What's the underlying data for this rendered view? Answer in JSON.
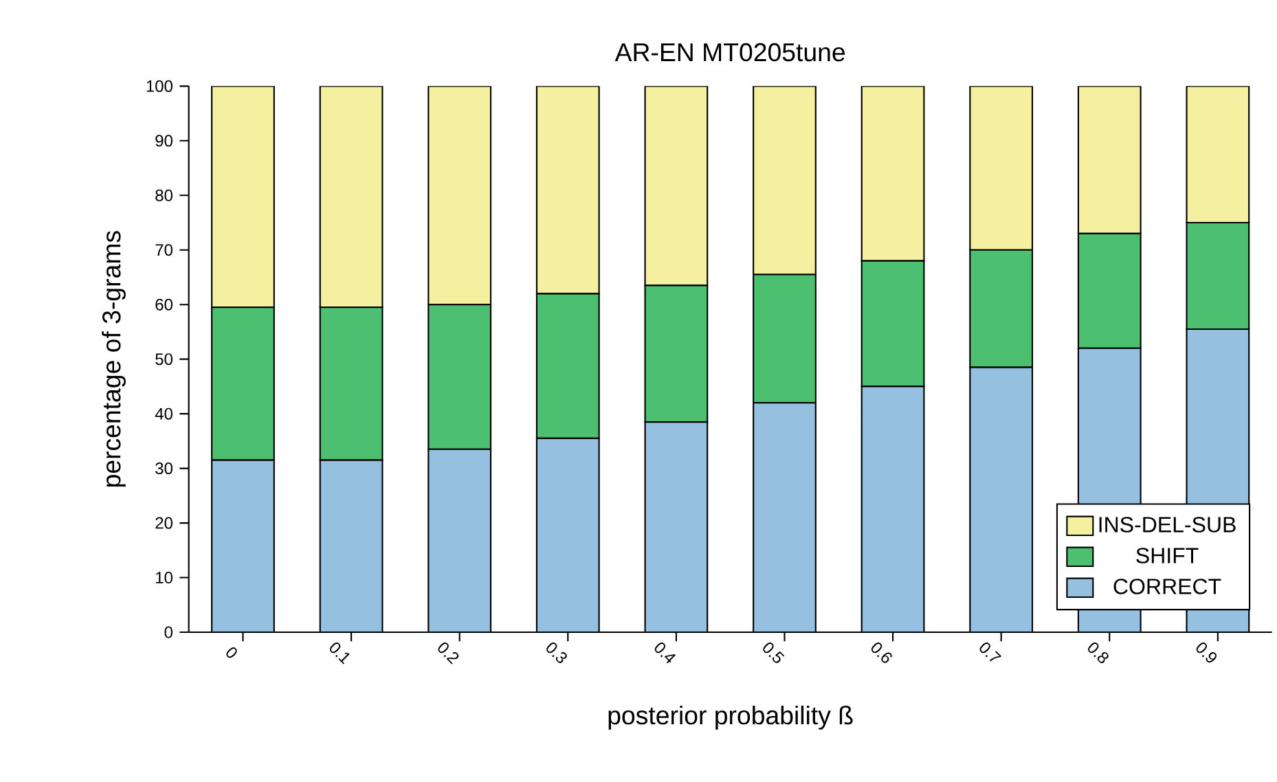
{
  "chart_data": {
    "type": "bar",
    "stacked": true,
    "title": "AR-EN    MT0205tune",
    "xlabel": "posterior probability ß",
    "ylabel": "percentage of 3-grams",
    "categories": [
      "0",
      "0.1",
      "0.2",
      "0.3",
      "0.4",
      "0.5",
      "0.6",
      "0.7",
      "0.8",
      "0.9"
    ],
    "series": [
      {
        "name": "CORRECT",
        "color": "#95c0e0",
        "values": [
          31.5,
          31.5,
          33.5,
          35.5,
          38.5,
          42,
          45,
          48.5,
          52,
          55.5
        ]
      },
      {
        "name": "SHIFT",
        "color": "#4cc070",
        "values": [
          28,
          28,
          26.5,
          26.5,
          25,
          23.5,
          23,
          21.5,
          21,
          19.5
        ]
      },
      {
        "name": "INS-DEL-SUB",
        "color": "#f5f0a0",
        "values": [
          40.5,
          40.5,
          40,
          38,
          36.5,
          34.5,
          32,
          30,
          27,
          25
        ]
      }
    ],
    "ylim": [
      0,
      100
    ],
    "yticks": [
      0,
      10,
      20,
      30,
      40,
      50,
      60,
      70,
      80,
      90,
      100
    ],
    "legend": "bottom right"
  }
}
